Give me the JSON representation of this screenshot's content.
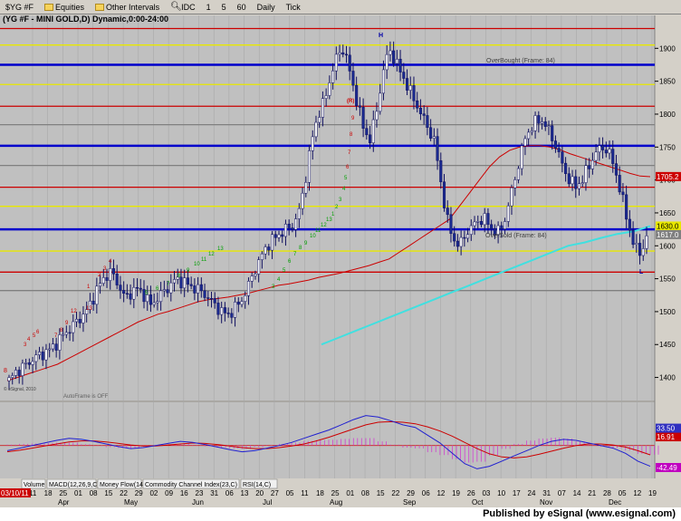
{
  "toolbar": {
    "symbol": "$YG #F",
    "items": [
      {
        "label": "Equities",
        "icon": "folder-icon"
      },
      {
        "label": "Other Intervals",
        "icon": "folder-icon"
      },
      {
        "label": "IDC",
        "icon": "magnifier-icon"
      },
      {
        "label": "1"
      },
      {
        "label": "5"
      },
      {
        "label": "60"
      },
      {
        "label": "Daily"
      },
      {
        "label": "Tick"
      }
    ]
  },
  "chart": {
    "title": "(YG #F - MINI GOLD,D) Dynamic,0:00-24:00",
    "copyright": "© eSignal, 2010",
    "autoframe": "AutoFrame is OFF",
    "overbought": "OverBought (Frame: 84)",
    "oversold": "OverSold (Frame: 84)",
    "high_marker": "H",
    "low_marker": "L",
    "r_marker": "(R)",
    "price_ticks": [
      "1900",
      "1850",
      "1800",
      "1750",
      "1700",
      "1650",
      "1600",
      "1550",
      "1500",
      "1450",
      "1400"
    ],
    "price_badges": [
      {
        "label": "1705.2",
        "value": 1705.2,
        "color": "#cc0000"
      },
      {
        "label": "1630.0",
        "value": 1630,
        "color": "#e8e800"
      },
      {
        "label": "1617.0",
        "value": 1617,
        "color": "#808080"
      }
    ],
    "macd_badges": [
      {
        "label": "16.91",
        "value": 16.91,
        "color": "#cc0000"
      },
      {
        "label": "33.50",
        "value": 33.5,
        "color": "#3030c0"
      },
      {
        "label": "-42.49",
        "value": -42.49,
        "color": "#c000c0"
      }
    ],
    "date_badge": "03/10/11",
    "date_labels": [
      "11",
      "18",
      "25",
      "01",
      "08",
      "15",
      "22",
      "29",
      "02",
      "09",
      "16",
      "23",
      "31",
      "06",
      "13",
      "20",
      "27",
      "05",
      "11",
      "18",
      "25",
      "01",
      "08",
      "15",
      "22",
      "29",
      "06",
      "12",
      "19",
      "26",
      "03",
      "10",
      "17",
      "24",
      "31",
      "07",
      "14",
      "21",
      "28",
      "05",
      "12",
      "19"
    ],
    "month_labels": [
      "Apr",
      "May",
      "Jun",
      "Jul",
      "Aug",
      "Sep",
      "Oct",
      "Nov",
      "Dec"
    ],
    "tabs": [
      "Volume",
      "MACD(12,26,9,C)",
      "Money Flow(14)",
      "Commodity Channel Index(23,C)",
      "RSI(14,C)"
    ],
    "seq_labels": [
      "3",
      "4",
      "5",
      "6",
      "7",
      "8",
      "9",
      "12",
      "13",
      "1",
      "2",
      "3",
      "4",
      "5",
      "6",
      "7",
      "8",
      "9",
      "10",
      "11",
      "12",
      "13",
      "3",
      "4",
      "5",
      "6",
      "7",
      "8",
      "9",
      "10",
      "11",
      "12",
      "13",
      "1",
      "2",
      "3",
      "4",
      "5",
      "6",
      "7",
      "8",
      "9"
    ]
  },
  "chart_data": {
    "type": "candlestick",
    "symbol": "YG #F - MINI GOLD",
    "interval": "Daily",
    "ylim": [
      1365,
      1950
    ],
    "y_ticks": [
      1400,
      1450,
      1500,
      1550,
      1600,
      1650,
      1700,
      1750,
      1800,
      1850,
      1900
    ],
    "horizontal_levels": [
      {
        "value": 1930,
        "color": "#cc0000"
      },
      {
        "value": 1905,
        "color": "#e8e800"
      },
      {
        "value": 1875,
        "color": "#0000cc"
      },
      {
        "value": 1845,
        "color": "#e8e800"
      },
      {
        "value": 1812,
        "color": "#cc0000"
      },
      {
        "value": 1784,
        "color": "#808080"
      },
      {
        "value": 1752,
        "color": "#0000cc"
      },
      {
        "value": 1722,
        "color": "#808080"
      },
      {
        "value": 1689,
        "color": "#cc0000"
      },
      {
        "value": 1660,
        "color": "#e8e800"
      },
      {
        "value": 1625,
        "color": "#0000cc"
      },
      {
        "value": 1592,
        "color": "#e8e800"
      },
      {
        "value": 1560,
        "color": "#cc0000"
      },
      {
        "value": 1532,
        "color": "#808080"
      }
    ],
    "close_path": [
      1395,
      1408,
      1415,
      1422,
      1430,
      1435,
      1440,
      1448,
      1460,
      1470,
      1480,
      1490,
      1500,
      1520,
      1540,
      1555,
      1560,
      1540,
      1520,
      1530,
      1535,
      1525,
      1510,
      1520,
      1530,
      1540,
      1550,
      1545,
      1540,
      1535,
      1530,
      1520,
      1510,
      1500,
      1495,
      1505,
      1515,
      1535,
      1560,
      1580,
      1600,
      1610,
      1618,
      1625,
      1630,
      1650,
      1700,
      1760,
      1800,
      1820,
      1860,
      1890,
      1900,
      1860,
      1820,
      1780,
      1760,
      1800,
      1860,
      1900,
      1880,
      1860,
      1840,
      1820,
      1800,
      1780,
      1760,
      1700,
      1640,
      1610,
      1600,
      1620,
      1630,
      1640,
      1640,
      1625,
      1620,
      1640,
      1680,
      1720,
      1760,
      1780,
      1790,
      1790,
      1770,
      1750,
      1720,
      1700,
      1690,
      1700,
      1720,
      1740,
      1750,
      1745,
      1720,
      1680,
      1640,
      1600,
      1590,
      1610
    ],
    "sma_red": [
      1395,
      1400,
      1405,
      1410,
      1415,
      1420,
      1428,
      1436,
      1444,
      1452,
      1460,
      1468,
      1476,
      1484,
      1490,
      1496,
      1500,
      1505,
      1510,
      1515,
      1518,
      1520,
      1522,
      1525,
      1528,
      1532,
      1536,
      1540,
      1542,
      1545,
      1548,
      1552,
      1555,
      1558,
      1562,
      1566,
      1570,
      1575,
      1580,
      1590,
      1600,
      1610,
      1620,
      1630,
      1640,
      1660,
      1680,
      1700,
      1720,
      1735,
      1745,
      1750,
      1752,
      1752,
      1750,
      1746,
      1740,
      1735,
      1730,
      1725,
      1720,
      1715,
      1710,
      1706,
      1705
    ],
    "sma_cyan": [
      1450,
      1460,
      1470,
      1480,
      1490,
      1500,
      1510,
      1520,
      1530,
      1540,
      1550,
      1560,
      1570,
      1580,
      1590,
      1600,
      1605,
      1612,
      1618,
      1622,
      1630
    ],
    "macd_line": [
      -10,
      -5,
      0,
      5,
      10,
      14,
      12,
      8,
      3,
      -2,
      -6,
      -4,
      0,
      4,
      8,
      6,
      2,
      -3,
      -8,
      -12,
      -10,
      -5,
      0,
      6,
      14,
      22,
      30,
      40,
      50,
      58,
      55,
      48,
      40,
      35,
      20,
      5,
      -15,
      -35,
      -45,
      -40,
      -30,
      -20,
      -10,
      0,
      8,
      12,
      10,
      5,
      0,
      -5,
      -15,
      -30,
      -40
    ],
    "macd_signal": [
      -12,
      -9,
      -5,
      -1,
      3,
      7,
      9,
      9,
      7,
      4,
      1,
      -1,
      -1,
      1,
      3,
      5,
      4,
      2,
      -1,
      -4,
      -6,
      -6,
      -4,
      -1,
      3,
      9,
      16,
      24,
      32,
      40,
      45,
      46,
      45,
      42,
      36,
      28,
      18,
      6,
      -6,
      -16,
      -22,
      -24,
      -22,
      -17,
      -11,
      -5,
      0,
      3,
      3,
      1,
      -3,
      -10,
      -18
    ],
    "macd_ylim": [
      -60,
      80
    ]
  }
}
